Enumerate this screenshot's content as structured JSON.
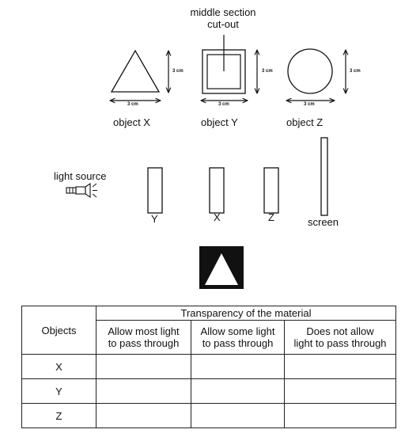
{
  "objects_row": {
    "cutout_label": "middle section\ncut-out",
    "dim": "3 cm",
    "object_x": "object X",
    "object_y": "object Y",
    "object_z": "object Z"
  },
  "setup": {
    "light_source": "light source",
    "slot_1": "Y",
    "slot_2": "X",
    "slot_3": "Z",
    "screen": "screen"
  },
  "table": {
    "objects_header": "Objects",
    "group_header": "Transparency of the material",
    "columns": [
      "Allow most light\nto pass through",
      "Allow some light\nto pass through",
      "Does not allow\nlight to pass through"
    ],
    "rows": [
      "X",
      "Y",
      "Z"
    ]
  }
}
